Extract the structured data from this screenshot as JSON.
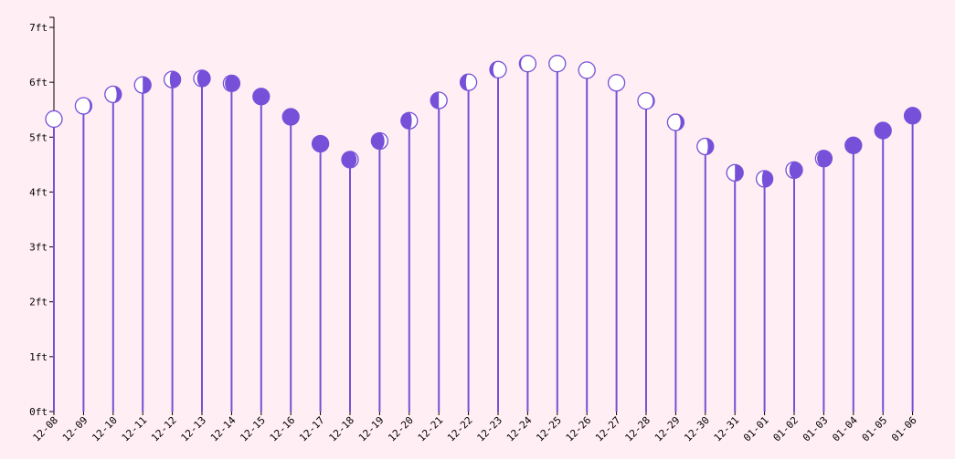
{
  "chart_data": {
    "type": "lollipop",
    "title": "",
    "xlabel": "",
    "ylabel": "",
    "ylim": [
      0,
      7
    ],
    "y_ticks": [
      "0ft",
      "1ft",
      "2ft",
      "3ft",
      "4ft",
      "5ft",
      "6ft",
      "7ft"
    ],
    "categories": [
      "12-08",
      "12-09",
      "12-10",
      "12-11",
      "12-12",
      "12-13",
      "12-14",
      "12-15",
      "12-16",
      "12-17",
      "12-18",
      "12-19",
      "12-20",
      "12-21",
      "12-22",
      "12-23",
      "12-24",
      "12-25",
      "12-26",
      "12-27",
      "12-28",
      "12-29",
      "12-30",
      "12-31",
      "01-01",
      "01-02",
      "01-03",
      "01-04",
      "01-05",
      "01-06"
    ],
    "values": [
      5.33,
      5.57,
      5.78,
      5.95,
      6.05,
      6.07,
      5.98,
      5.74,
      5.37,
      4.88,
      4.59,
      4.93,
      5.3,
      5.67,
      6.0,
      6.23,
      6.34,
      6.34,
      6.22,
      5.99,
      5.66,
      5.27,
      4.83,
      4.35,
      4.24,
      4.4,
      4.61,
      4.85,
      5.12,
      5.39
    ],
    "moon_phase": [
      0.55,
      0.61,
      0.68,
      0.75,
      0.8,
      0.85,
      0.9,
      0.96,
      0.0,
      0.05,
      0.1,
      0.15,
      0.2,
      0.25,
      0.3,
      0.35,
      0.4,
      0.45,
      0.5,
      0.55,
      0.6,
      0.65,
      0.7,
      0.75,
      0.8,
      0.85,
      0.9,
      0.95,
      0.98,
      0.0
    ],
    "colors": {
      "accent": "#7650d8",
      "light": "#ffffff",
      "background": "#ffeef3",
      "axis": "#000000"
    }
  }
}
